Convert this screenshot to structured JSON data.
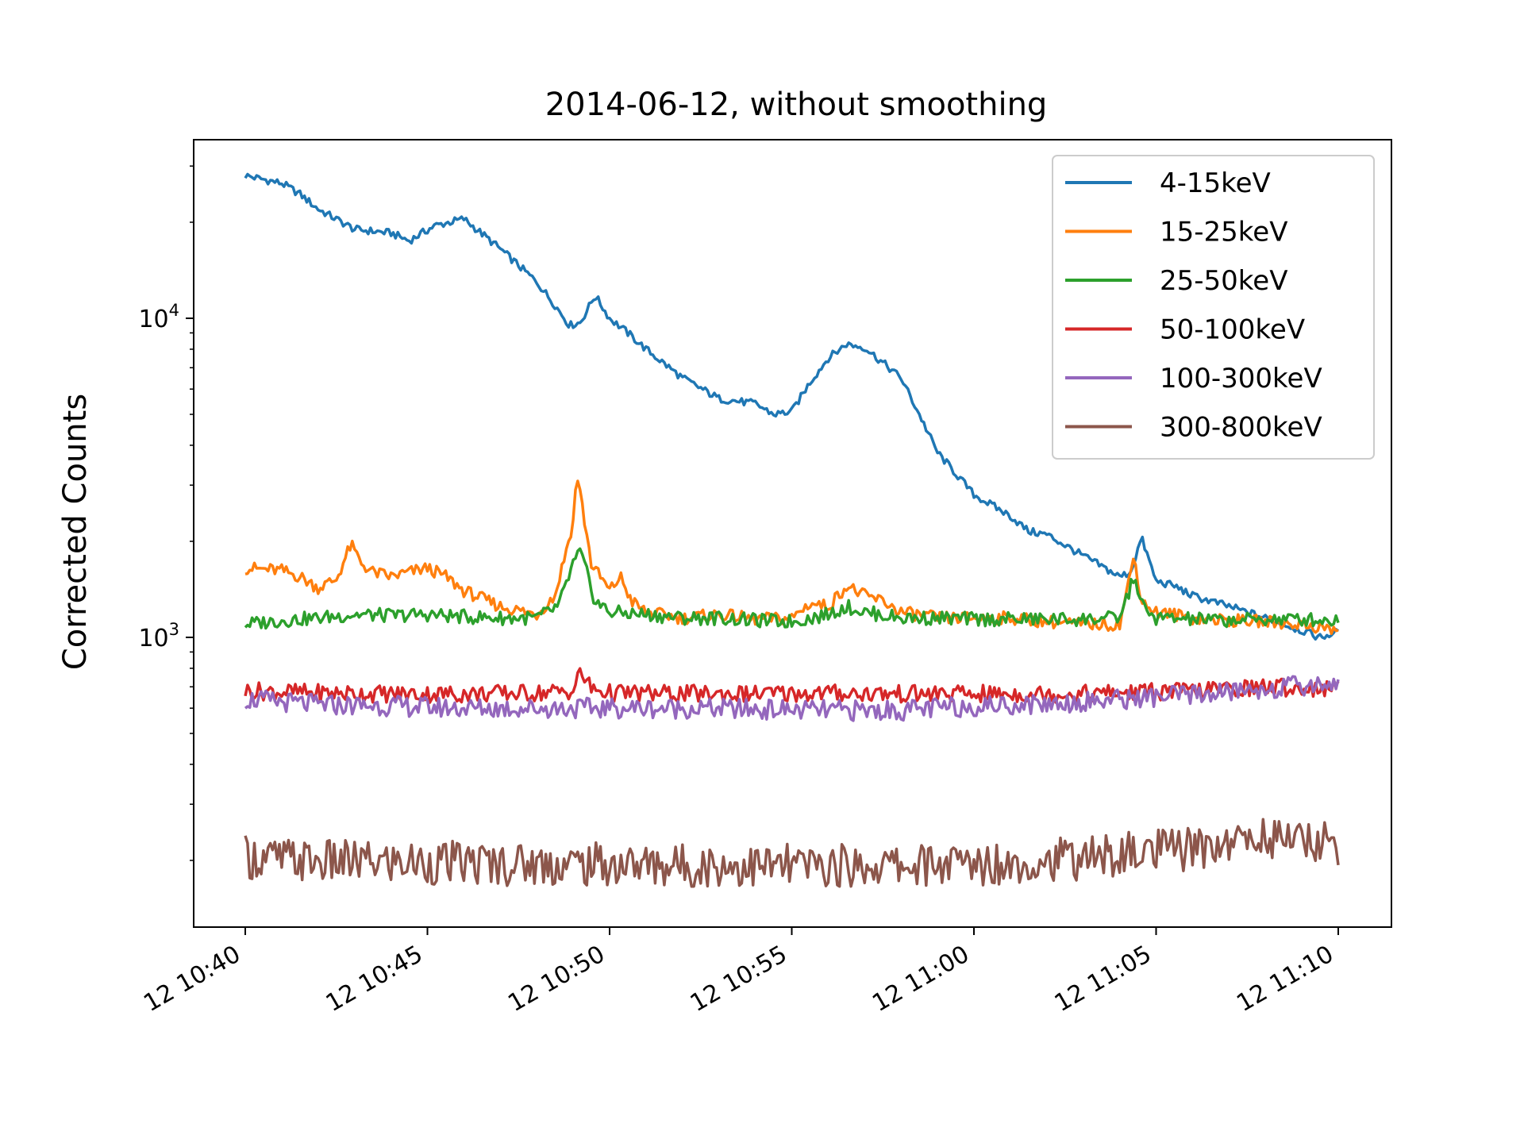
{
  "chart_data": {
    "type": "line",
    "title": "2014-06-12, without smoothing",
    "xlabel": "",
    "ylabel": "Corrected Counts",
    "yscale": "log",
    "ylim": [
      150,
      33000
    ],
    "xlim_minutes": [
      0,
      30
    ],
    "x_ticks": [
      {
        "minute": 0,
        "label": "12 10:40"
      },
      {
        "minute": 5,
        "label": "12 10:45"
      },
      {
        "minute": 10,
        "label": "12 10:50"
      },
      {
        "minute": 15,
        "label": "12 10:55"
      },
      {
        "minute": 20,
        "label": "12 11:00"
      },
      {
        "minute": 25,
        "label": "12 11:05"
      },
      {
        "minute": 30,
        "label": "12 11:10"
      }
    ],
    "y_ticks": [
      {
        "value": 1000,
        "base": "10",
        "exp": "3"
      },
      {
        "value": 10000,
        "base": "10",
        "exp": "4"
      }
    ],
    "legend": "upper right",
    "grid": false,
    "series": [
      {
        "name": "4-15keV",
        "color": "#1f77b4",
        "x": [
          0,
          1,
          1.5,
          2,
          3,
          4,
          4.5,
          5.2,
          6,
          7,
          8,
          8.5,
          8.9,
          9.2,
          9.6,
          10,
          10.5,
          11,
          12,
          13,
          14,
          14.5,
          15,
          15.5,
          16,
          16.5,
          17,
          18,
          18.5,
          19,
          20,
          21,
          21.5,
          22,
          23,
          24,
          24.3,
          24.6,
          25,
          25.5,
          26,
          27,
          28,
          29,
          29.5,
          30
        ],
        "y": [
          28000,
          26500,
          24500,
          22000,
          19000,
          18500,
          17500,
          19500,
          20500,
          16500,
          13000,
          11000,
          9500,
          9700,
          11800,
          10000,
          9000,
          8000,
          6500,
          5600,
          5400,
          5000,
          5100,
          6300,
          7500,
          8300,
          8100,
          6500,
          5000,
          3800,
          2800,
          2400,
          2150,
          2100,
          1800,
          1550,
          1600,
          2050,
          1500,
          1450,
          1350,
          1250,
          1150,
          1050,
          1000,
          1040
        ]
      },
      {
        "name": "15-25keV",
        "color": "#ff7f0e",
        "x": [
          0,
          1,
          1.5,
          2,
          2.5,
          2.9,
          3.2,
          3.5,
          4,
          4.5,
          5,
          5.5,
          6,
          7,
          8,
          8.5,
          9,
          9.1,
          9.5,
          10,
          10.3,
          10.6,
          11,
          12,
          13,
          14,
          15,
          15.5,
          16,
          16.5,
          17,
          17.5,
          18,
          19,
          20,
          21,
          22,
          23,
          24,
          24.2,
          24.4,
          24.6,
          25,
          25.5,
          26,
          27,
          28,
          29,
          30
        ],
        "y": [
          1650,
          1620,
          1550,
          1430,
          1520,
          1950,
          1700,
          1600,
          1550,
          1600,
          1650,
          1550,
          1400,
          1250,
          1180,
          1350,
          2300,
          3300,
          1700,
          1400,
          1550,
          1300,
          1200,
          1150,
          1180,
          1140,
          1150,
          1280,
          1250,
          1450,
          1350,
          1300,
          1200,
          1150,
          1150,
          1150,
          1120,
          1100,
          1100,
          1400,
          1800,
          1300,
          1200,
          1180,
          1150,
          1130,
          1120,
          1100,
          1050
        ]
      },
      {
        "name": "25-50keV",
        "color": "#2ca02c",
        "x": [
          0,
          1,
          2,
          3,
          4,
          5,
          6,
          7,
          8,
          8.6,
          9,
          9.2,
          9.6,
          10,
          11,
          12,
          13,
          14,
          15,
          16,
          16.5,
          17,
          18,
          19,
          20,
          21,
          22,
          23,
          24,
          24.4,
          24.7,
          25,
          26,
          27,
          28,
          29,
          30
        ],
        "y": [
          1100,
          1130,
          1150,
          1180,
          1170,
          1180,
          1160,
          1150,
          1150,
          1250,
          1700,
          1850,
          1300,
          1200,
          1180,
          1150,
          1150,
          1130,
          1120,
          1180,
          1250,
          1200,
          1150,
          1150,
          1140,
          1140,
          1140,
          1140,
          1150,
          1550,
          1200,
          1150,
          1140,
          1130,
          1140,
          1140,
          1130
        ]
      },
      {
        "name": "50-100keV",
        "color": "#d62728",
        "x": [
          0,
          2,
          4,
          6,
          8,
          9,
          9.2,
          9.5,
          10,
          12,
          14,
          16,
          18,
          20,
          22,
          24,
          26,
          28,
          30
        ],
        "y": [
          680,
          670,
          665,
          665,
          670,
          680,
          780,
          690,
          670,
          665,
          665,
          670,
          665,
          665,
          665,
          670,
          680,
          700,
          690
        ]
      },
      {
        "name": "100-300keV",
        "color": "#9467bd",
        "x": [
          0,
          2,
          4,
          6,
          8,
          10,
          12,
          14,
          16,
          18,
          20,
          22,
          24,
          26,
          28,
          30
        ],
        "y": [
          640,
          615,
          610,
          600,
          600,
          600,
          600,
          595,
          590,
          590,
          610,
          620,
          640,
          660,
          690,
          720
        ]
      },
      {
        "name": "300-800keV",
        "color": "#8c564b",
        "x": [
          0,
          2,
          4,
          6,
          8,
          10,
          12,
          14,
          16,
          18,
          20,
          22,
          24,
          26,
          28,
          30
        ],
        "y": [
          205,
          198,
          197,
          196,
          195,
          194,
          193,
          192,
          192,
          193,
          195,
          200,
          208,
          218,
          238,
          225
        ]
      }
    ]
  }
}
